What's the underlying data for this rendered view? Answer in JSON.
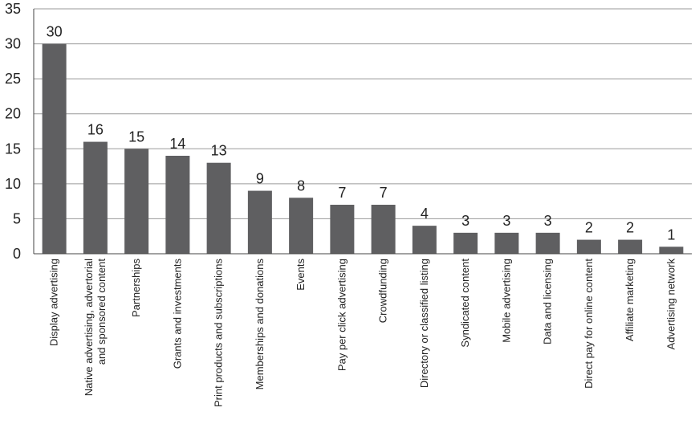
{
  "chart_data": {
    "type": "bar",
    "title": "",
    "xlabel": "",
    "ylabel": "",
    "ylim": [
      0,
      35
    ],
    "yticks": [
      0,
      5,
      10,
      15,
      20,
      25,
      30,
      35
    ],
    "grid": true,
    "categories": [
      [
        "Display advertising"
      ],
      [
        "Native advertising, advertorial",
        "and sponsored content"
      ],
      [
        "Partnerships"
      ],
      [
        "Grants and investments"
      ],
      [
        "Print products and subscriptions"
      ],
      [
        "Memberships and donations"
      ],
      [
        "Events"
      ],
      [
        "Pay per click advertising"
      ],
      [
        "Crowdfunding"
      ],
      [
        "Directory or classified listing"
      ],
      [
        "Syndicated content"
      ],
      [
        "Mobile advertising"
      ],
      [
        "Data and licensing"
      ],
      [
        "Direct pay for online content"
      ],
      [
        "Affiliate marketing"
      ],
      [
        "Advertising network"
      ]
    ],
    "values": [
      30,
      16,
      15,
      14,
      13,
      9,
      8,
      7,
      7,
      4,
      3,
      3,
      3,
      2,
      2,
      1
    ],
    "bar_color": "#5f5f61",
    "grid_color": "#9a9a9a"
  }
}
